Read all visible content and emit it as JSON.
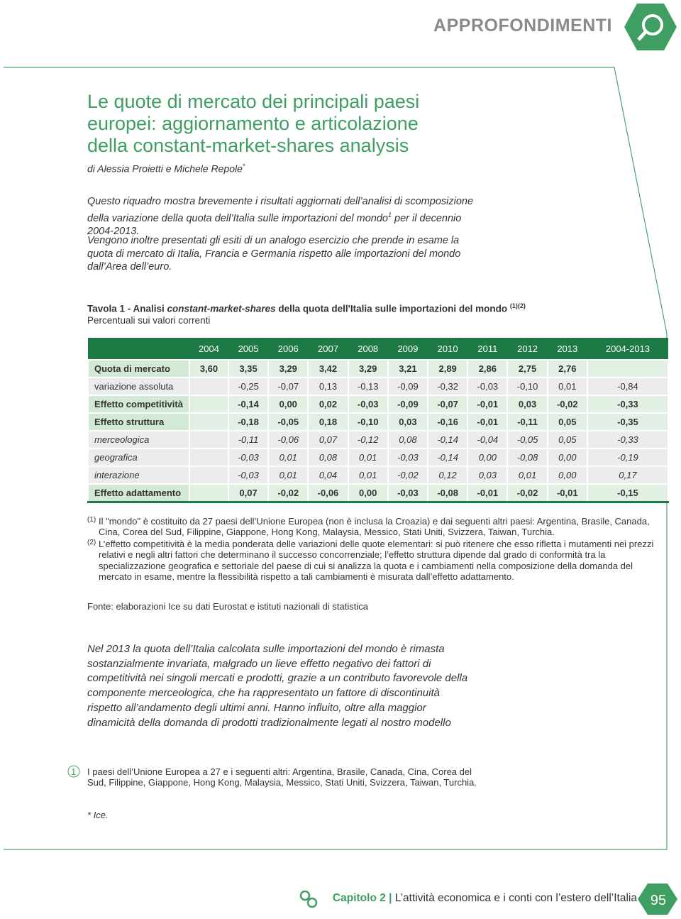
{
  "header": {
    "section": "APPROFONDIMENTI"
  },
  "article": {
    "title": "Le quote di mercato dei principali paesi europei: aggiornamento e articolazione della constant-market-shares analysis",
    "author": "di Alessia Proietti e Michele Repole",
    "author_mark": "*",
    "intro_1": "Questo riquadro mostra brevemente i risultati aggiornati dell’analisi di scomposizione della variazione della quota dell’Italia sulle importazioni del mondo",
    "intro_1_note": "1",
    "intro_1_rest": " per il decennio 2004-2013.",
    "intro_2": "Vengono inoltre presentati gli esiti di un analogo esercizio che prende in esame la quota di mercato di Italia, Francia e Germania rispetto alle importazioni del mondo dall’Area dell’euro."
  },
  "table": {
    "title_1": "Tavola 1 - Analisi ",
    "title_2": "constant-market-shares",
    "title_3": " della quota dell'Italia sulle importazioni del mondo ",
    "title_notes": "(1)(2)",
    "subtitle": "Percentuali sui valori correnti",
    "columns": [
      "2004",
      "2005",
      "2006",
      "2007",
      "2008",
      "2009",
      "2010",
      "2011",
      "2012",
      "2013",
      "2004-2013"
    ],
    "rows": [
      {
        "label": "Quota di mercato",
        "values": [
          "3,60",
          "3,35",
          "3,29",
          "3,42",
          "3,29",
          "3,21",
          "2,89",
          "2,86",
          "2,75",
          "2,76"
        ]
      },
      {
        "label": "variazione assoluta",
        "values": [
          "-0,25",
          "-0,07",
          "0,13",
          "-0,13",
          "-0,09",
          "-0,32",
          "-0,03",
          "-0,10",
          "0,01",
          "-0,84"
        ]
      },
      {
        "label": "Effetto competitività",
        "values": [
          "-0,14",
          "0,00",
          "0,02",
          "-0,03",
          "-0,09",
          "-0,07",
          "-0,01",
          "0,03",
          "-0,02",
          "-0,33"
        ]
      },
      {
        "label": "Effetto struttura",
        "values": [
          "-0,18",
          "-0,05",
          "0,18",
          "-0,10",
          "0,03",
          "-0,16",
          "-0,01",
          "-0,11",
          "0,05",
          "-0,35"
        ]
      },
      {
        "label": "merceologica",
        "values": [
          "-0,11",
          "-0,06",
          "0,07",
          "-0,12",
          "0,08",
          "-0,14",
          "-0,04",
          "-0,05",
          "0,05",
          "-0,33"
        ]
      },
      {
        "label": "geografica",
        "values": [
          "-0,03",
          "0,01",
          "0,08",
          "0,01",
          "-0,03",
          "-0,14",
          "0,00",
          "-0,08",
          "0,00",
          "-0,19"
        ]
      },
      {
        "label": "interazione",
        "values": [
          "-0,03",
          "0,01",
          "0,04",
          "0,01",
          "-0,02",
          "0,12",
          "0,03",
          "0,01",
          "0,00",
          "0,17"
        ]
      },
      {
        "label": "Effetto adattamento",
        "values": [
          "0,07",
          "-0,02",
          "-0,06",
          "0,00",
          "-0,03",
          "-0,08",
          "-0,01",
          "-0,02",
          "-0,01",
          "-0,15"
        ]
      }
    ],
    "notes": [
      {
        "mark": "(1)",
        "text": "Il \"mondo\" è costituito da 27 paesi dell’Unione Europea (non è inclusa la Croazia) e dai seguenti altri paesi: Argentina, Brasile, Canada, Cina, Corea del Sud, Filippine, Giappone, Hong Kong, Malaysia, Messico, Stati Uniti, Svizzera, Taiwan, Turchia."
      },
      {
        "mark": "(2)",
        "text": "L’effetto competitività è la media ponderata delle variazioni delle quote elementari: si può ritenere che esso rifletta i mutamenti nei prezzi relativi e negli altri fattori che determinano il successo concorrenziale; l’effetto struttura dipende dal grado di conformità tra la specializzazione geografica e settoriale del paese di cui si analizza la quota e i cambiamenti nella composizione della domanda del mercato in esame, mentre la flessibilità rispetto a tali cambiamenti è misurata dall’effetto adattamento."
      }
    ],
    "source": "Fonte: elaborazioni Ice su dati Eurostat e istituti nazionali di statistica"
  },
  "highlight": "Nel 2013 la quota dell’Italia calcolata sulle importazioni del mondo è rimasta sostanzialmente invariata, malgrado un lieve effetto negativo dei fattori di competitività nei singoli mercati e prodotti, grazie a un contributo favorevole della componente merceologica, che ha rappresentato un fattore di discontinuità rispetto all’andamento degli ultimi anni. Hanno influito, oltre alla maggior dinamicità della domanda di prodotti tradizionalmente legati al nostro modello",
  "footnotes": [
    {
      "mark": "1",
      "text": "I paesi dell’Unione Europea a 27 e i seguenti altri: Argentina, Brasile, Canada, Cina, Corea del Sud, Filippine, Giappone, Hong Kong, Malaysia, Messico, Stati Uniti, Svizzera, Taiwan, Turchia."
    },
    {
      "mark": "*",
      "text": "Ice."
    }
  ],
  "footer": {
    "chapter": "Capitolo 2",
    "separator": "|",
    "title": "L’attività economica e i conti con l’estero dell’Italia",
    "page": "95"
  }
}
